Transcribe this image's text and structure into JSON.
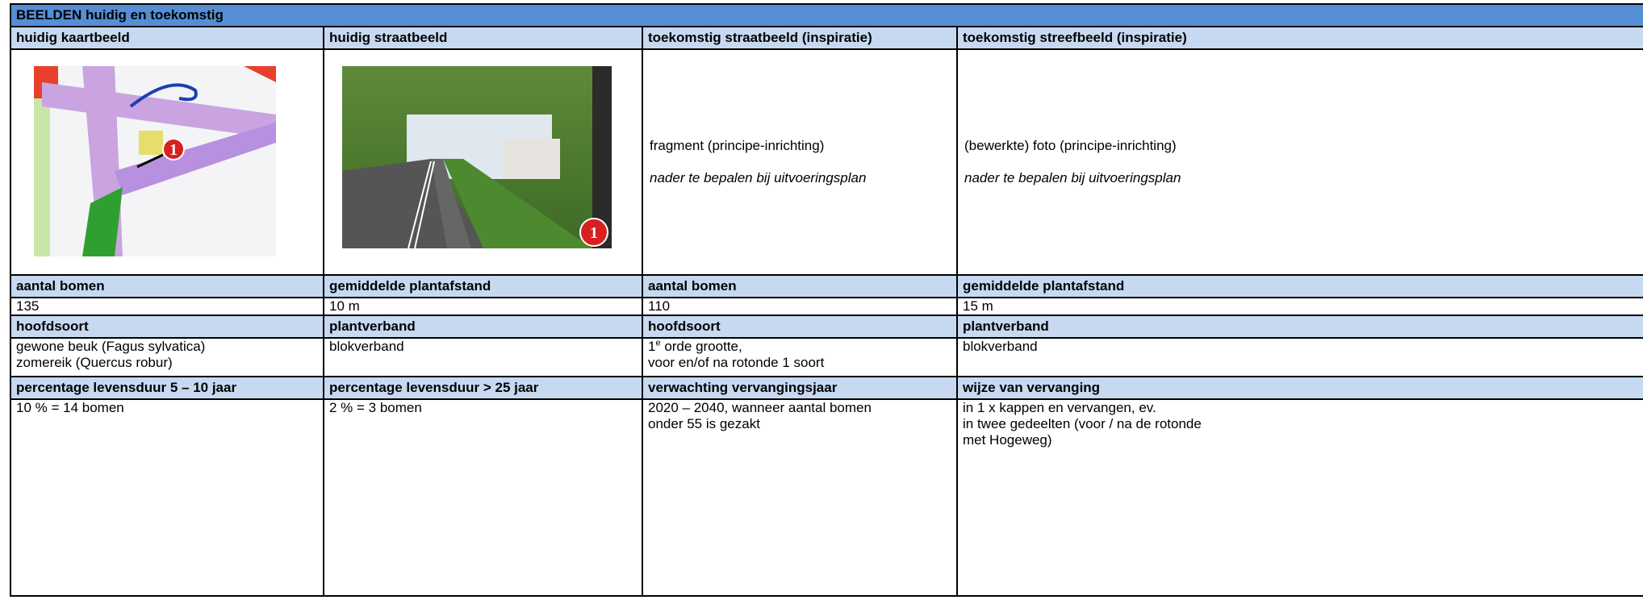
{
  "title": "BEELDEN huidig en toekomstig",
  "headers": [
    "huidig kaartbeeld",
    "huidig straatbeeld",
    "toekomstig straatbeeld (inspiratie)",
    "toekomstig streefbeeld (inspiratie)"
  ],
  "map_marker": "1",
  "photo_marker": "1",
  "future_street": [
    "fragment (principe-inrichting)",
    "nader te bepalen bij uitvoeringsplan"
  ],
  "future_target": [
    "(bewerkte) foto (principe-inrichting)",
    "nader te bepalen bij uitvoeringsplan"
  ],
  "sections": [
    {
      "headers": [
        "aantal bomen",
        "gemiddelde plantafstand",
        "aantal bomen",
        "gemiddelde plantafstand"
      ],
      "values": [
        [
          "135"
        ],
        [
          "10 m"
        ],
        [
          "110"
        ],
        [
          "15 m"
        ]
      ]
    },
    {
      "headers": [
        "hoofdsoort",
        "plantverband",
        "hoofdsoort",
        "plantverband"
      ],
      "values": [
        [
          "gewone beuk (Fagus sylvatica)",
          "zomereik (Quercus robur)"
        ],
        [
          "blokverband"
        ],
        [
          "1",
          "e",
          " orde grootte,",
          "voor en/of na rotonde 1 soort"
        ],
        [
          "blokverband"
        ]
      ]
    },
    {
      "headers": [
        "percentage levensduur 5 – 10 jaar",
        "percentage levensduur > 25 jaar",
        "verwachting vervangingsjaar",
        "wijze van vervanging"
      ],
      "values": [
        [
          "10 % = 14 bomen"
        ],
        [
          "2 % = 3 bomen"
        ],
        [
          "2020 – 2040, wanneer aantal bomen",
          "onder 55 is gezakt"
        ],
        [
          "in 1 x kappen en vervangen, ev.",
          "in twee gedeelten (voor / na de rotonde",
          "met Hogeweg)"
        ]
      ]
    }
  ]
}
